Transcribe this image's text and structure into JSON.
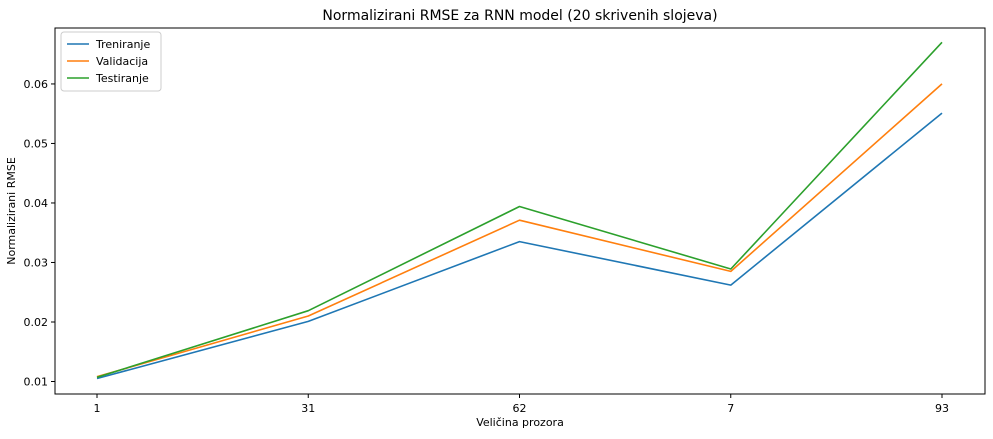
{
  "chart_data": {
    "type": "line",
    "title": "Normalizirani RMSE za RNN model (20 skrivenih slojeva)",
    "xlabel": "Veličina prozora",
    "ylabel": "Normalizirani RMSE",
    "categories": [
      "1",
      "31",
      "62",
      "7",
      "93"
    ],
    "yticks": [
      "0.01",
      "0.02",
      "0.03",
      "0.04",
      "0.05",
      "0.06"
    ],
    "ylim": [
      0.0079,
      0.0694
    ],
    "grid": false,
    "legend_position": "top-left",
    "series": [
      {
        "name": "Treniranje",
        "color": "#1f77b4",
        "values": [
          0.0105,
          0.0201,
          0.0335,
          0.0262,
          0.0551
        ]
      },
      {
        "name": "Validacija",
        "color": "#ff7f0e",
        "values": [
          0.0108,
          0.021,
          0.0371,
          0.0285,
          0.06
        ]
      },
      {
        "name": "Testiranje",
        "color": "#2ca02c",
        "values": [
          0.0107,
          0.0219,
          0.0394,
          0.0289,
          0.067
        ]
      }
    ]
  }
}
